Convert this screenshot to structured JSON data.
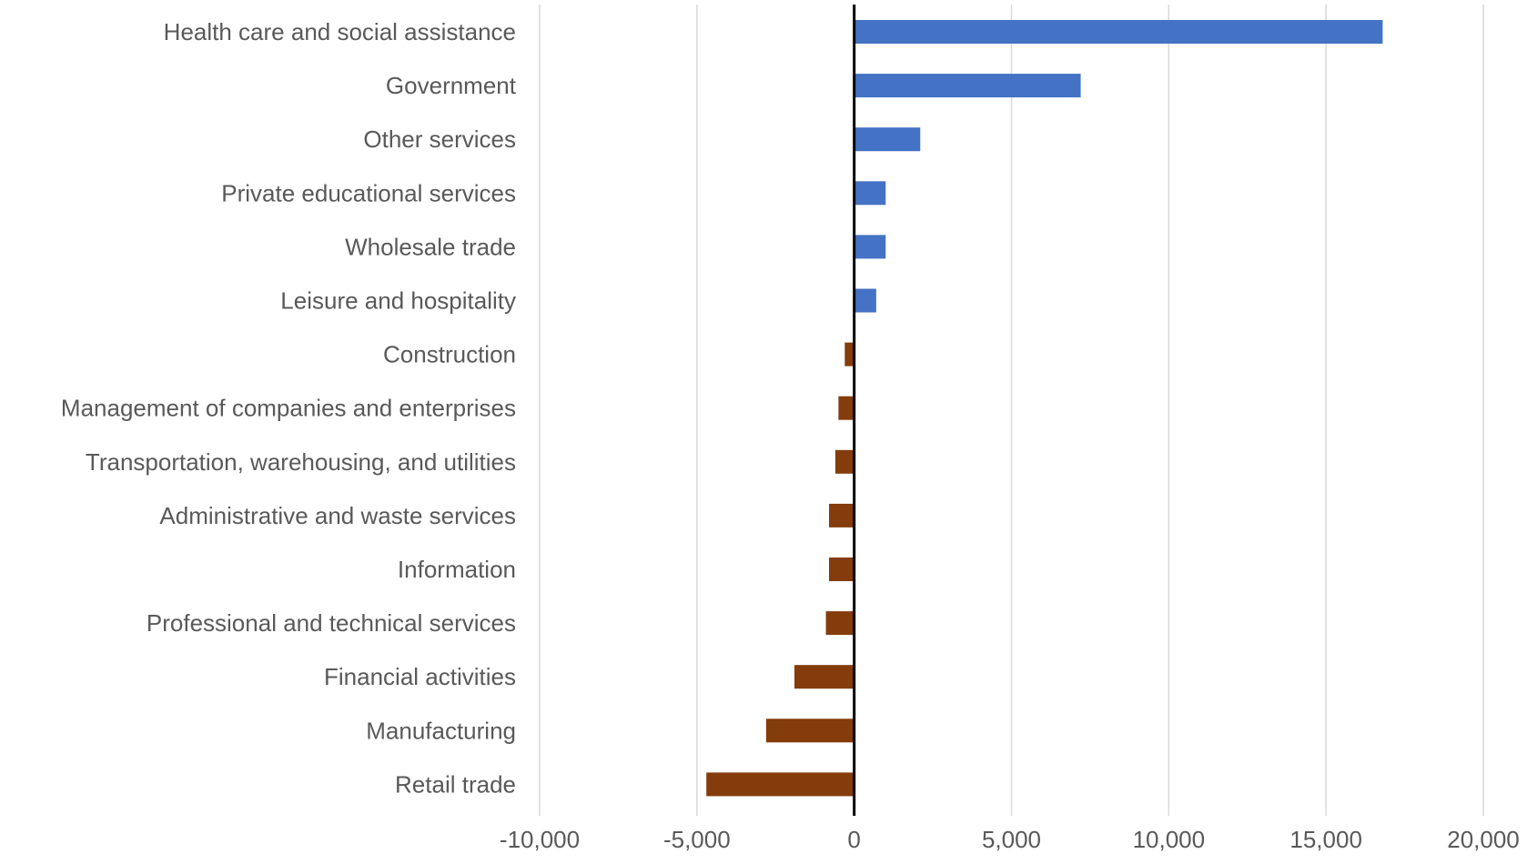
{
  "chart_data": {
    "type": "bar",
    "orientation": "horizontal",
    "categories": [
      "Health care and social assistance",
      "Government",
      "Other services",
      "Private educational services",
      "Wholesale trade",
      "Leisure and hospitality",
      "Construction",
      "Management of companies and enterprises",
      "Transportation, warehousing, and utilities",
      "Administrative and waste services",
      "Information",
      "Professional and technical services",
      "Financial activities",
      "Manufacturing",
      "Retail trade"
    ],
    "values": [
      16800,
      7200,
      2100,
      1000,
      1000,
      700,
      -300,
      -500,
      -600,
      -800,
      -800,
      -900,
      -1900,
      -2800,
      -4700
    ],
    "xlim": [
      -10000,
      20000
    ],
    "xticks": [
      -10000,
      -5000,
      0,
      5000,
      10000,
      15000,
      20000
    ],
    "xtick_labels": [
      "-10,000",
      "-5,000",
      "0",
      "5,000",
      "10,000",
      "15,000",
      "20,000"
    ],
    "grid": "vertical",
    "title": "",
    "xlabel": "",
    "ylabel": "",
    "colors": {
      "positive": "#4472c4",
      "negative": "#843c0c",
      "zero_line": "#000000",
      "grid": "#d9d9d9",
      "text": "#595959"
    }
  }
}
